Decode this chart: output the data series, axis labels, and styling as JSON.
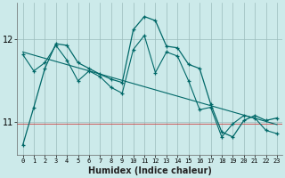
{
  "xlabel": "Humidex (Indice chaleur)",
  "bg_color": "#cceaea",
  "grid_color": "#9bbcbc",
  "line_color": "#006868",
  "red_line_color": "#cc4444",
  "ylim": [
    10.6,
    12.45
  ],
  "xlim": [
    -0.5,
    23.5
  ],
  "yticks": [
    11,
    12
  ],
  "xticks": [
    0,
    1,
    2,
    3,
    4,
    5,
    6,
    7,
    8,
    9,
    10,
    11,
    12,
    13,
    14,
    15,
    16,
    17,
    18,
    19,
    20,
    21,
    22,
    23
  ],
  "series1_x": [
    0,
    1,
    2,
    3,
    4,
    5,
    6,
    7,
    8,
    9,
    10,
    11,
    12,
    13,
    14,
    15,
    16,
    17,
    18,
    19,
    20,
    21,
    22,
    23
  ],
  "series1_y": [
    10.72,
    11.18,
    11.65,
    11.95,
    11.93,
    11.72,
    11.65,
    11.58,
    11.52,
    11.48,
    12.12,
    12.28,
    12.23,
    11.92,
    11.9,
    11.7,
    11.65,
    11.22,
    10.88,
    10.82,
    11.02,
    11.08,
    11.02,
    11.05
  ],
  "series2_x": [
    0,
    1,
    2,
    3,
    4,
    5,
    6,
    7,
    8,
    9,
    10,
    11,
    12,
    13,
    14,
    15,
    16,
    17,
    18,
    19,
    20,
    21,
    22,
    23
  ],
  "series2_y": [
    11.82,
    11.62,
    11.72,
    11.93,
    11.75,
    11.5,
    11.62,
    11.55,
    11.42,
    11.35,
    11.88,
    12.05,
    11.6,
    11.85,
    11.8,
    11.5,
    11.15,
    11.18,
    10.82,
    10.98,
    11.08,
    11.05,
    10.9,
    10.86
  ],
  "series3_x": [
    0,
    23
  ],
  "series3_y": [
    11.85,
    10.97
  ]
}
